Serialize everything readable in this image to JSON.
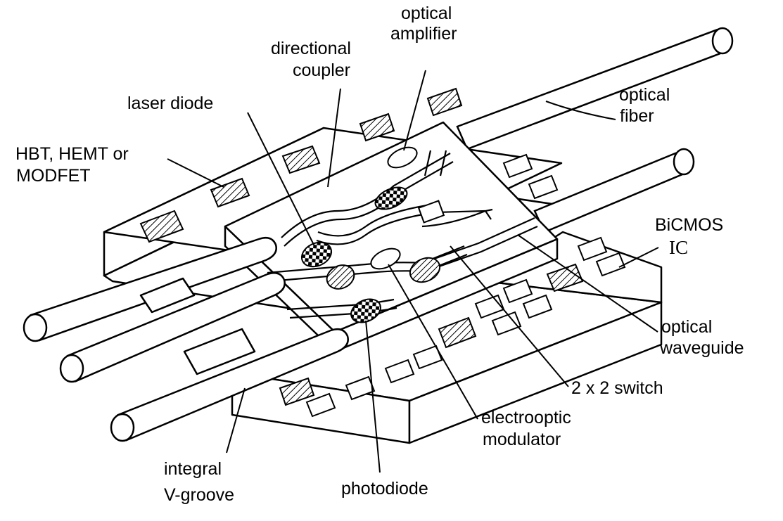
{
  "labels": {
    "optical_amplifier_1": "optical",
    "optical_amplifier_2": "amplifier",
    "directional_coupler_1": "directional",
    "directional_coupler_2": "coupler",
    "laser_diode": "laser diode",
    "optical_fiber_1": "optical",
    "optical_fiber_2": "fiber",
    "transistor_1": "HBT, HEMT or",
    "transistor_2": "MODFET",
    "bicmos_1": "BiCMOS",
    "bicmos_2": "IC",
    "optical_waveguide_1": "optical",
    "optical_waveguide_2": "waveguide",
    "switch": "2 x 2 switch",
    "electrooptic_1": "electrooptic",
    "electrooptic_2": "modulator",
    "photodiode": "photodiode",
    "vgroove_1": "integral",
    "vgroove_2": "V-groove"
  }
}
